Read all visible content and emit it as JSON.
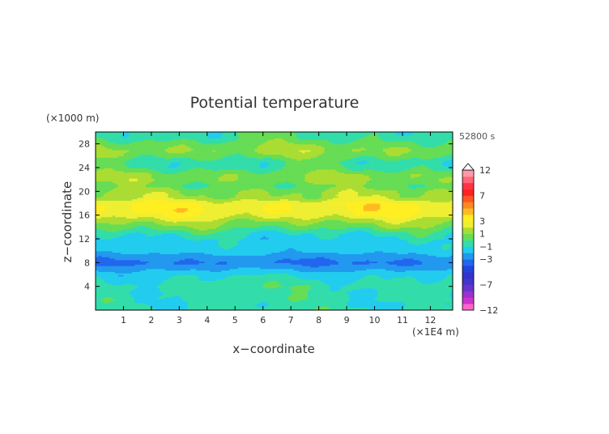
{
  "chart_data": {
    "type": "heatmap",
    "title": "Potential temperature",
    "xlabel": "x−coordinate",
    "ylabel": "z−coordinate",
    "x_unit": "(×1E4 m)",
    "y_unit": "(×1000 m)",
    "time_label": "52800 s",
    "xlim": [
      0,
      12.8
    ],
    "ylim": [
      0,
      30
    ],
    "x_ticks": [
      1,
      2,
      3,
      4,
      5,
      6,
      7,
      8,
      9,
      10,
      11,
      12
    ],
    "y_ticks": [
      4,
      8,
      12,
      16,
      20,
      24,
      28
    ],
    "grid": false,
    "colorbar": {
      "placement": "right",
      "labels": [
        "12",
        "7",
        "3",
        "1",
        "−1",
        "−3",
        "−7",
        "−12"
      ],
      "label_values": [
        12,
        7,
        3,
        1,
        -1,
        -3,
        -7,
        -12
      ],
      "levels": [
        -12,
        -10,
        -9,
        -8,
        -7,
        -6,
        -5,
        -4,
        -3,
        -2,
        -1,
        0,
        1,
        2,
        3,
        4,
        5,
        6,
        7,
        8,
        9,
        10,
        12
      ],
      "colors": [
        "#ff66cc",
        "#cc33cc",
        "#9933cc",
        "#6633cc",
        "#4433cc",
        "#3333cc",
        "#2244dd",
        "#2266ee",
        "#2299ee",
        "#22ccee",
        "#33ddaa",
        "#66dd55",
        "#aadd33",
        "#eeee33",
        "#ffee22",
        "#ffbb22",
        "#ff8822",
        "#ff5522",
        "#ff2222",
        "#ff3344",
        "#ff6677",
        "#ff99aa"
      ]
    },
    "z_levels": [
      0,
      1,
      2,
      3,
      4,
      5,
      6,
      7,
      8,
      9,
      10,
      11,
      12,
      13,
      14,
      15,
      16,
      17,
      18,
      19,
      20,
      21,
      22,
      23,
      24,
      25,
      26,
      27,
      28,
      29,
      30
    ],
    "profile_values": [
      -0.6,
      -0.8,
      -0.5,
      -0.7,
      -0.4,
      -0.8,
      -1.2,
      -2.2,
      -3.1,
      -2.6,
      -1.6,
      -1.4,
      -1.3,
      -0.8,
      0.4,
      1.3,
      2.6,
      3.2,
      3.0,
      1.4,
      1.2,
      0.3,
      1.0,
      0.8,
      -0.2,
      -0.5,
      0.6,
      1.2,
      0.6,
      -0.2,
      -0.4
    ]
  }
}
